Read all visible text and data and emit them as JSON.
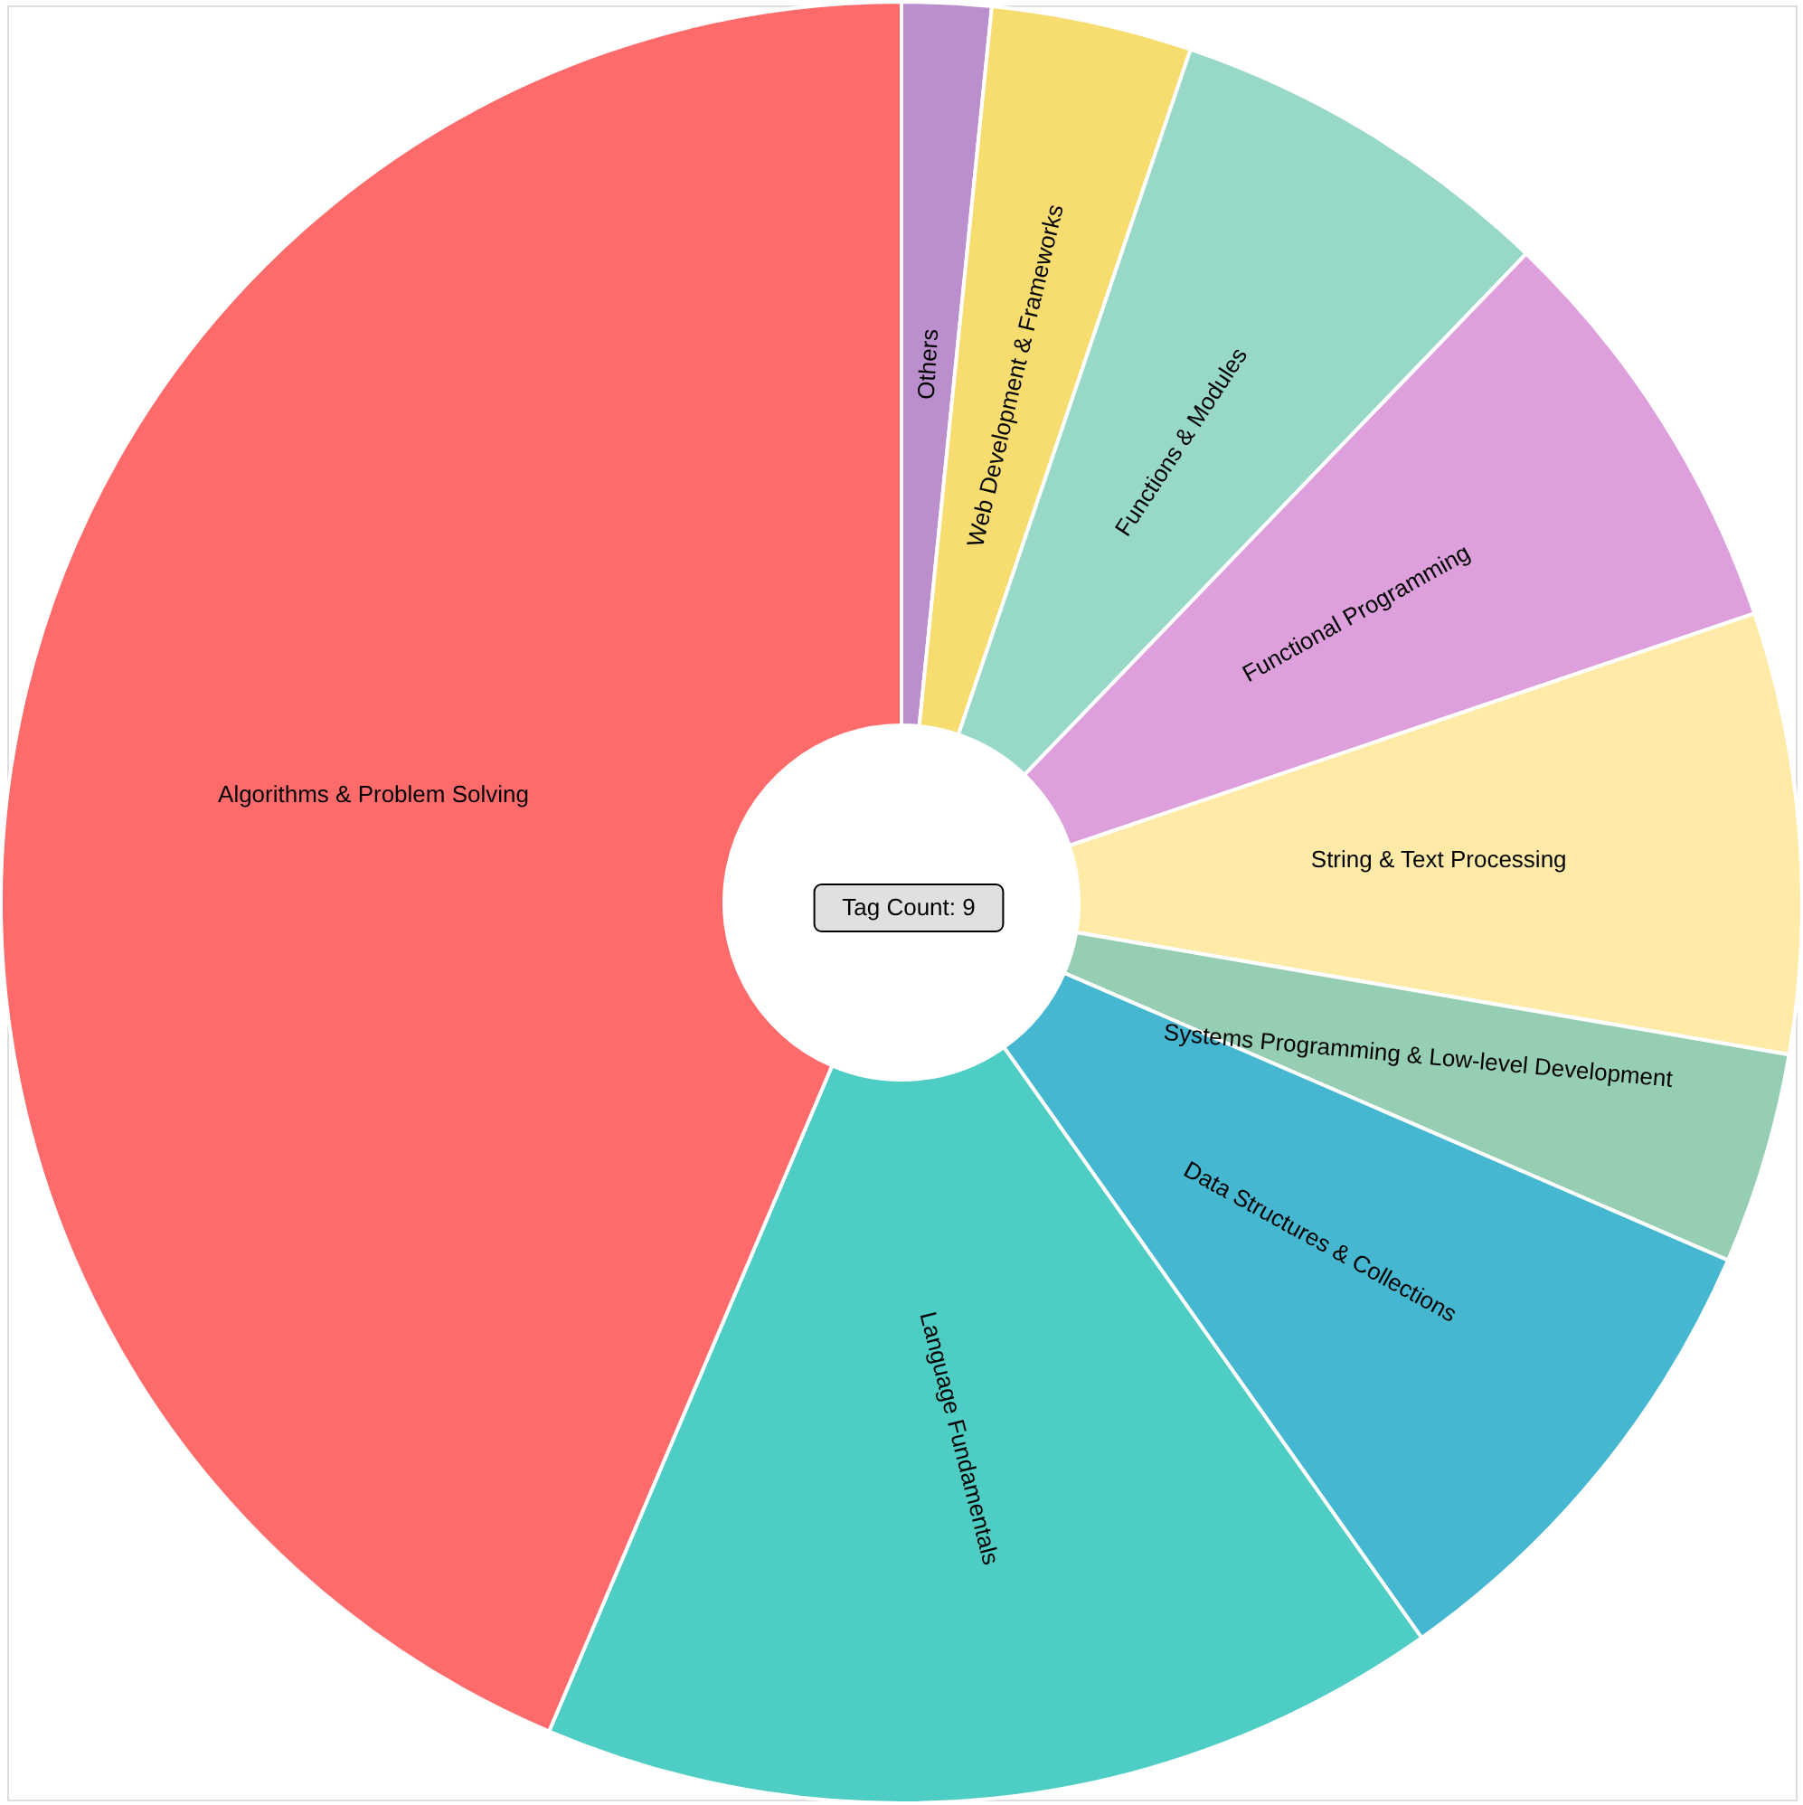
{
  "chart_data": {
    "type": "donut",
    "categories": [
      "Others",
      "Web Development & Frameworks",
      "Functions & Modules",
      "Functional Programming",
      "String & Text Processing",
      "Systems Programming & Low-level Development",
      "Data Structures & Collections",
      "Language Fundamentals",
      "Algorithms & Problem Solving"
    ],
    "values": [
      1.6,
      3.6,
      7.0,
      7.6,
      7.9,
      3.8,
      8.7,
      16.2,
      43.6
    ],
    "colors": [
      "#bb8fce",
      "#f7dc6f",
      "#98d8c8",
      "#dda0dd",
      "#ffeaa7",
      "#96ceb4",
      "#45b7d1",
      "#4ecdc4",
      "#ff6b6b"
    ],
    "annotations": [
      "Tag Count: 9"
    ],
    "legend": false
  }
}
